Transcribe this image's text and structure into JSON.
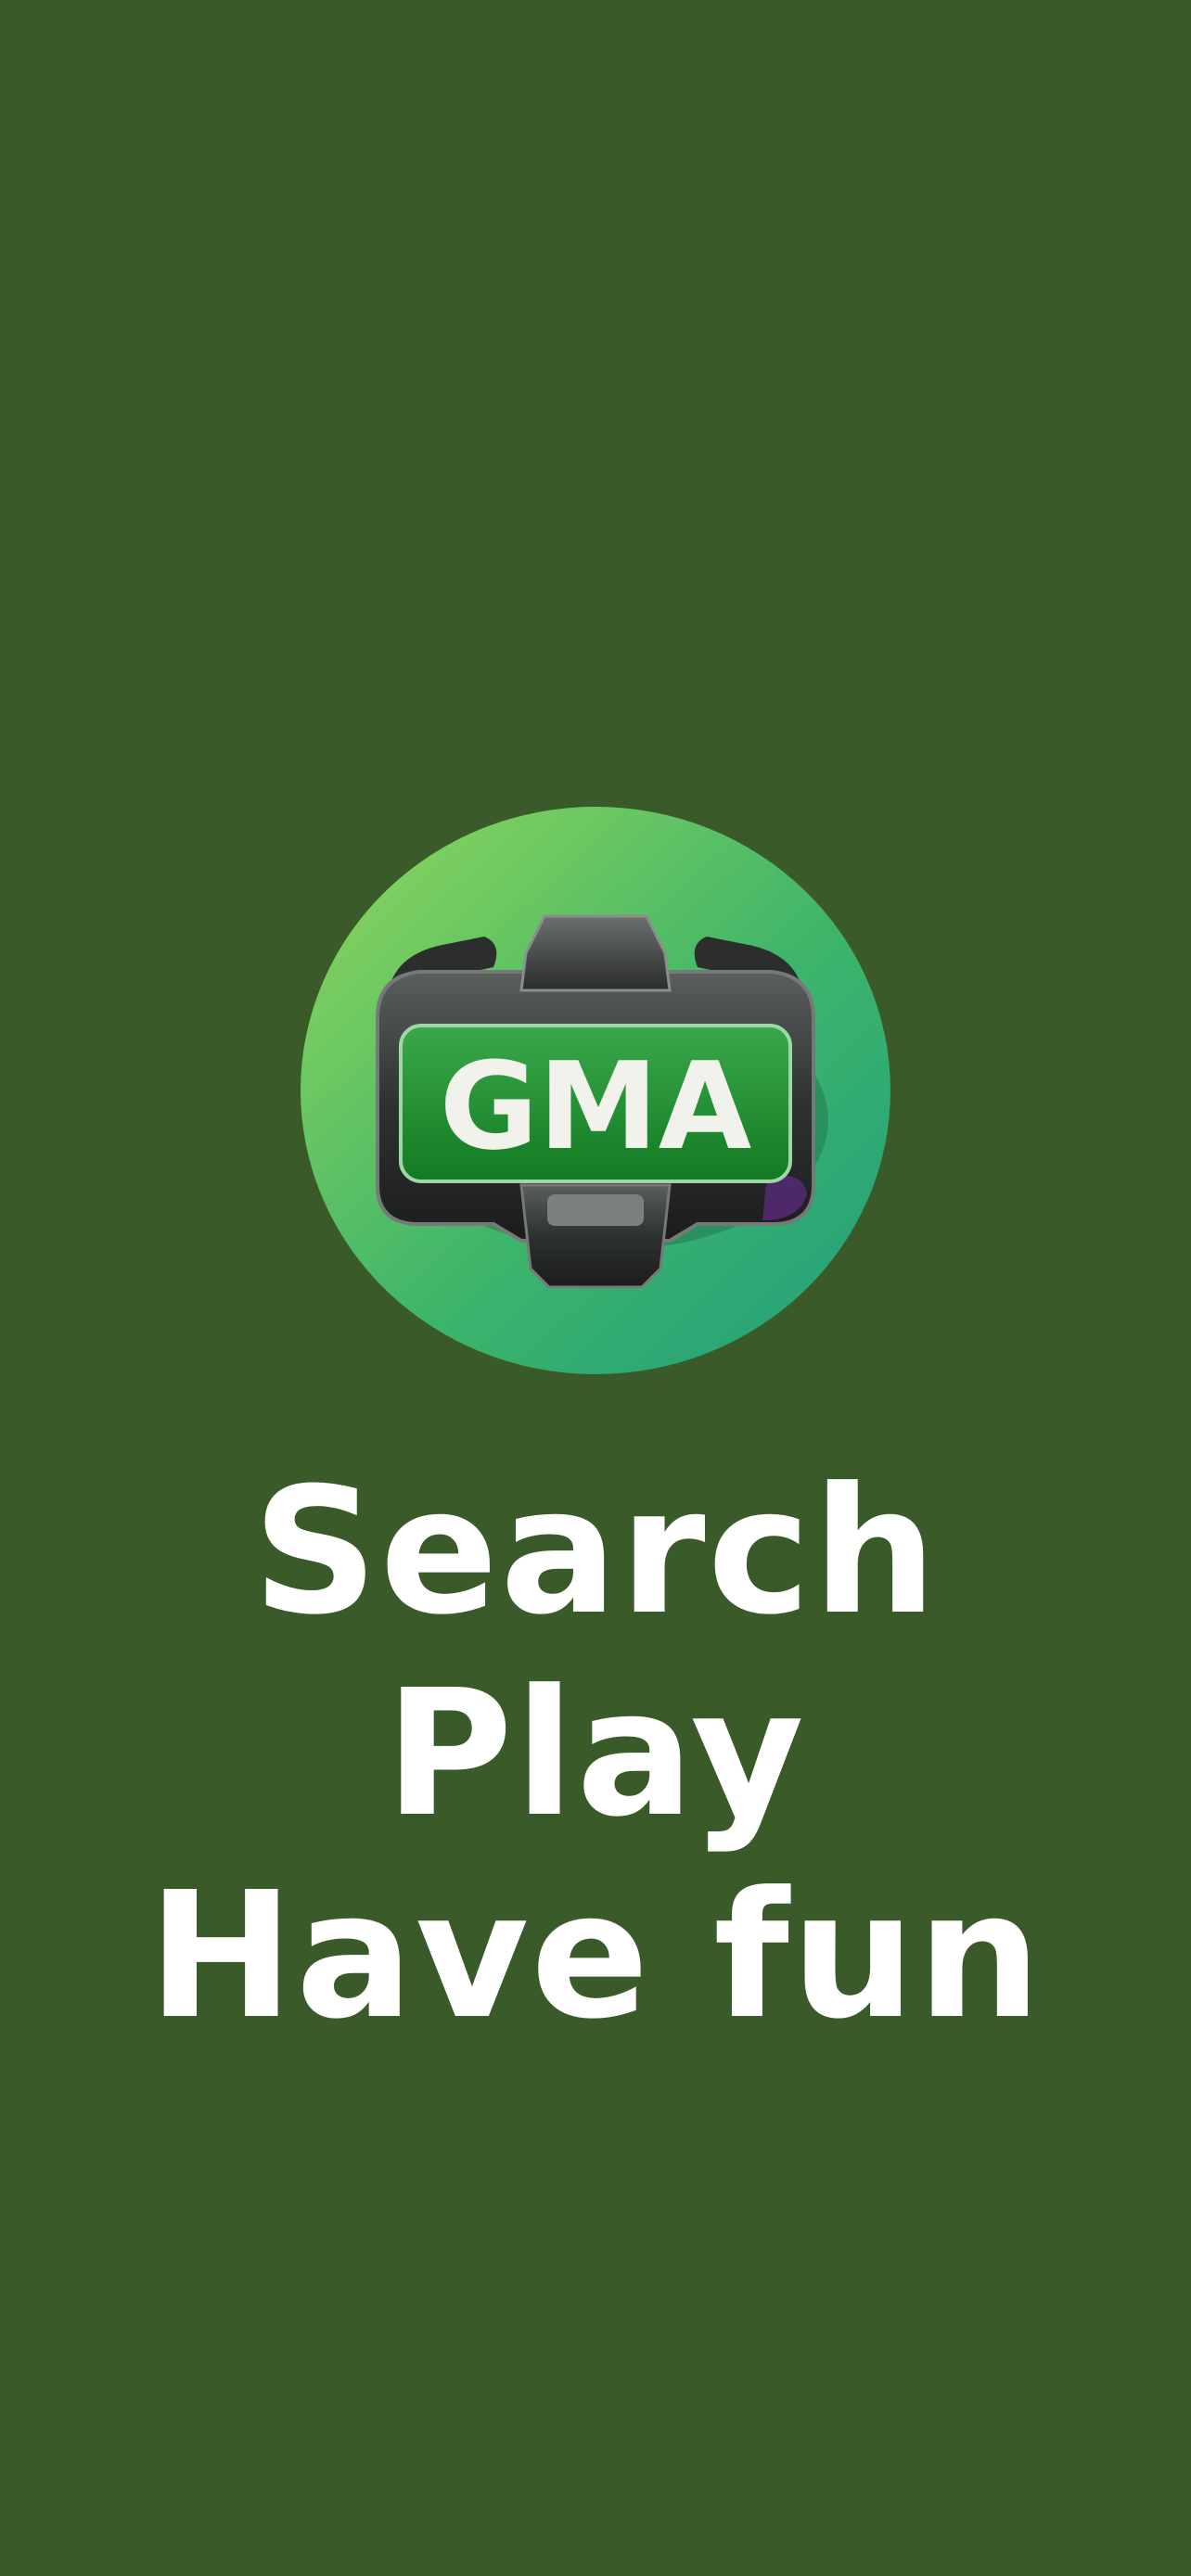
{
  "screen": {
    "background_color": "#3a5a2a"
  },
  "logo": {
    "icon": "gamepad-logo-icon",
    "text": "GMA",
    "circle_colors": [
      "#8fd35a",
      "#2aa874"
    ],
    "badge_color": "#1f8a2e"
  },
  "tagline": {
    "lines": [
      "Search",
      "Play",
      "Have fun"
    ],
    "color": "#ffffff"
  }
}
